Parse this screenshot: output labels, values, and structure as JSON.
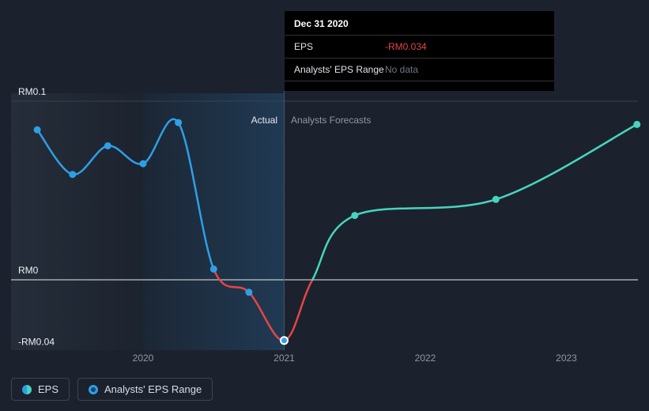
{
  "colors": {
    "background": "#1b222d",
    "actual_blue": "#2e9fe6",
    "negative_red": "#e64545",
    "forecast_teal": "#47d4bf",
    "grid": "#39414f",
    "zero_line": "#e8eaed",
    "muted_text": "#8f98a3",
    "tooltip_bg": "#000000"
  },
  "tooltip": {
    "title": "Dec 31 2020",
    "rows": [
      {
        "label": "EPS",
        "value": "-RM0.034",
        "value_color": "#e64545"
      },
      {
        "label": "Analysts' EPS Range",
        "value": "No data",
        "value_color": "#6e7681"
      }
    ]
  },
  "chart_data": {
    "type": "line",
    "title": "",
    "unit": "RM",
    "ylim": [
      -0.04,
      0.104
    ],
    "x_range": [
      2019.2,
      2023.55
    ],
    "grid": true,
    "y_ticks": [
      {
        "label": "RM0.1",
        "v": 0.1,
        "line": true,
        "line_color": "#39414f",
        "label_color": "#eef1f4"
      },
      {
        "label": "RM0",
        "v": 0,
        "line": true,
        "line_color": "#e8eaed",
        "label_color": "#eef1f4"
      },
      {
        "label": "-RM0.04",
        "v": -0.04,
        "line": false,
        "label_color": "#eef1f4"
      }
    ],
    "x_ticks": [
      {
        "label": "2020",
        "t": 2020
      },
      {
        "label": "2021",
        "t": 2021
      },
      {
        "label": "2022",
        "t": 2022
      },
      {
        "label": "2023",
        "t": 2023
      }
    ],
    "annotations": {
      "actual_label": "Actual",
      "forecast_label": "Analysts Forecasts"
    },
    "divider_t": 2021,
    "highlight_band": {
      "t0": 2020,
      "t1": 2021
    },
    "series": [
      {
        "name": "EPS (actual)",
        "color": "#2e9fe6",
        "points": [
          [
            2019.25,
            0.084
          ],
          [
            2019.5,
            0.059
          ],
          [
            2019.75,
            0.075
          ],
          [
            2020,
            0.065
          ],
          [
            2020.25,
            0.088
          ],
          [
            2020.5,
            0.006
          ]
        ]
      },
      {
        "name": "EPS (actual, negative)",
        "color": "#e64545",
        "points": [
          [
            2020.5,
            0.006
          ],
          [
            2020.75,
            -0.007
          ],
          [
            2021,
            -0.034
          ],
          [
            2021.2,
            0
          ]
        ]
      },
      {
        "name": "EPS (analysts forecast)",
        "color": "#47d4bf",
        "points": [
          [
            2021.2,
            0
          ],
          [
            2021.5,
            0.036
          ],
          [
            2022.5,
            0.045
          ],
          [
            2023.5,
            0.087
          ]
        ]
      }
    ],
    "markers": [
      {
        "t": 2019.25,
        "v": 0.084,
        "color": "#2e9fe6"
      },
      {
        "t": 2019.5,
        "v": 0.059,
        "color": "#2e9fe6"
      },
      {
        "t": 2019.75,
        "v": 0.075,
        "color": "#2e9fe6"
      },
      {
        "t": 2020,
        "v": 0.065,
        "color": "#2e9fe6"
      },
      {
        "t": 2020.25,
        "v": 0.088,
        "color": "#2e9fe6"
      },
      {
        "t": 2020.5,
        "v": 0.006,
        "color": "#2e9fe6"
      },
      {
        "t": 2020.75,
        "v": -0.007,
        "color": "#2e9fe6"
      },
      {
        "t": 2021,
        "v": -0.034,
        "color": "#2e9fe6",
        "ring": true
      },
      {
        "t": 2021.5,
        "v": 0.036,
        "color": "#47d4bf"
      },
      {
        "t": 2022.5,
        "v": 0.045,
        "color": "#47d4bf"
      },
      {
        "t": 2023.5,
        "v": 0.087,
        "color": "#47d4bf"
      }
    ]
  },
  "legend": [
    {
      "label": "EPS",
      "icon": "eps-series-icon"
    },
    {
      "label": "Analysts' EPS Range",
      "icon": "eps-range-icon"
    }
  ]
}
